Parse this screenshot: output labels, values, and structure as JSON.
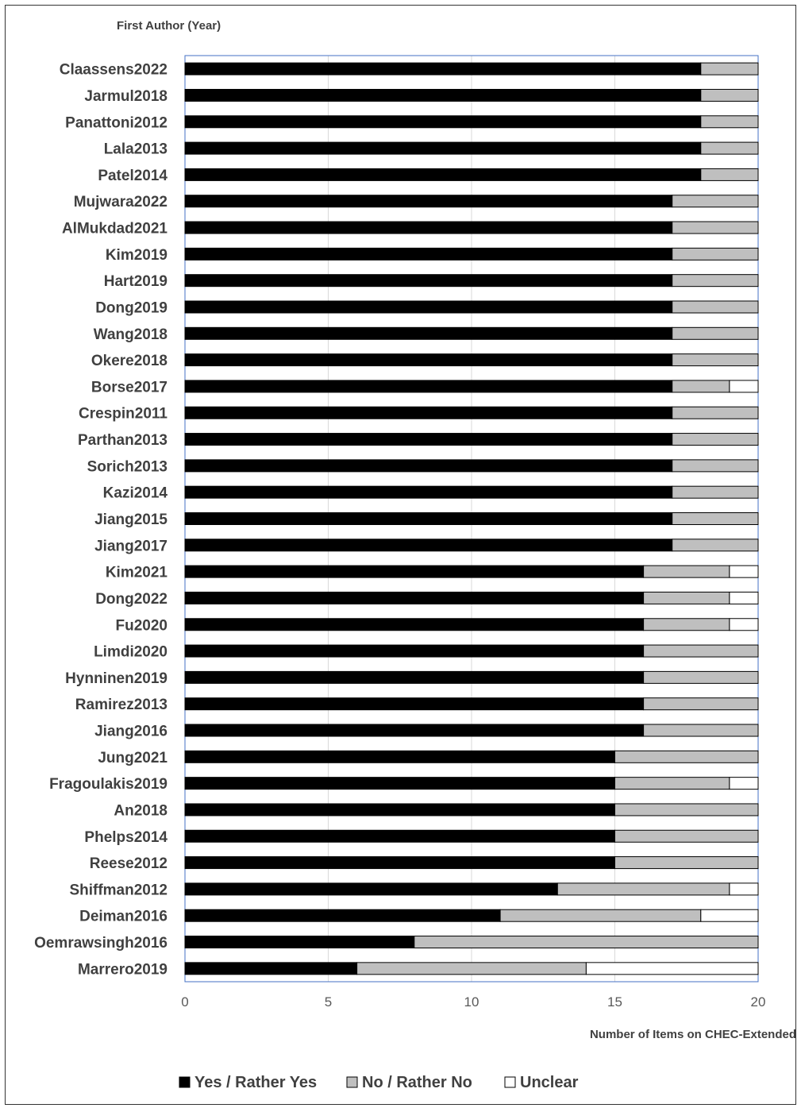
{
  "chart_data": {
    "type": "bar",
    "orientation": "horizontal",
    "stacked": true,
    "y_axis_title": "First Author (Year)",
    "xlabel": "Number of Items on CHEC-Extended",
    "xlim": [
      0,
      20
    ],
    "xticks": [
      0,
      5,
      10,
      15,
      20
    ],
    "grid": true,
    "legend_position": "bottom",
    "categories": [
      "Claassens2022",
      "Jarmul2018",
      "Panattoni2012",
      "Lala2013",
      "Patel2014",
      "Mujwara2022",
      "AlMukdad2021",
      "Kim2019",
      "Hart2019",
      "Dong2019",
      "Wang2018",
      "Okere2018",
      "Borse2017",
      "Crespin2011",
      "Parthan2013",
      "Sorich2013",
      "Kazi2014",
      "Jiang2015",
      "Jiang2017",
      "Kim2021",
      "Dong2022",
      "Fu2020",
      "Limdi2020",
      "Hynninen2019",
      "Ramirez2013",
      "Jiang2016",
      "Jung2021",
      "Fragoulakis2019",
      "An2018",
      "Phelps2014",
      "Reese2012",
      "Shiffman2012",
      "Deiman2016",
      "Oemrawsingh2016",
      "Marrero2019"
    ],
    "series": [
      {
        "name": "Yes / Rather Yes",
        "color": "#000000",
        "values": [
          18,
          18,
          18,
          18,
          18,
          17,
          17,
          17,
          17,
          17,
          17,
          17,
          17,
          17,
          17,
          17,
          17,
          17,
          17,
          16,
          16,
          16,
          16,
          16,
          16,
          16,
          15,
          15,
          15,
          15,
          15,
          13,
          11,
          8,
          6
        ]
      },
      {
        "name": "No / Rather No",
        "color": "#bfbfbf",
        "values": [
          2,
          2,
          2,
          2,
          2,
          3,
          3,
          3,
          3,
          3,
          3,
          3,
          2,
          3,
          3,
          3,
          3,
          3,
          3,
          3,
          3,
          3,
          4,
          4,
          4,
          4,
          5,
          4,
          5,
          5,
          5,
          6,
          7,
          12,
          8
        ]
      },
      {
        "name": "Unclear",
        "color": "#ffffff",
        "values": [
          0,
          0,
          0,
          0,
          0,
          0,
          0,
          0,
          0,
          0,
          0,
          0,
          1,
          0,
          0,
          0,
          0,
          0,
          0,
          1,
          1,
          1,
          0,
          0,
          0,
          0,
          0,
          1,
          0,
          0,
          0,
          1,
          2,
          0,
          6
        ]
      }
    ]
  }
}
